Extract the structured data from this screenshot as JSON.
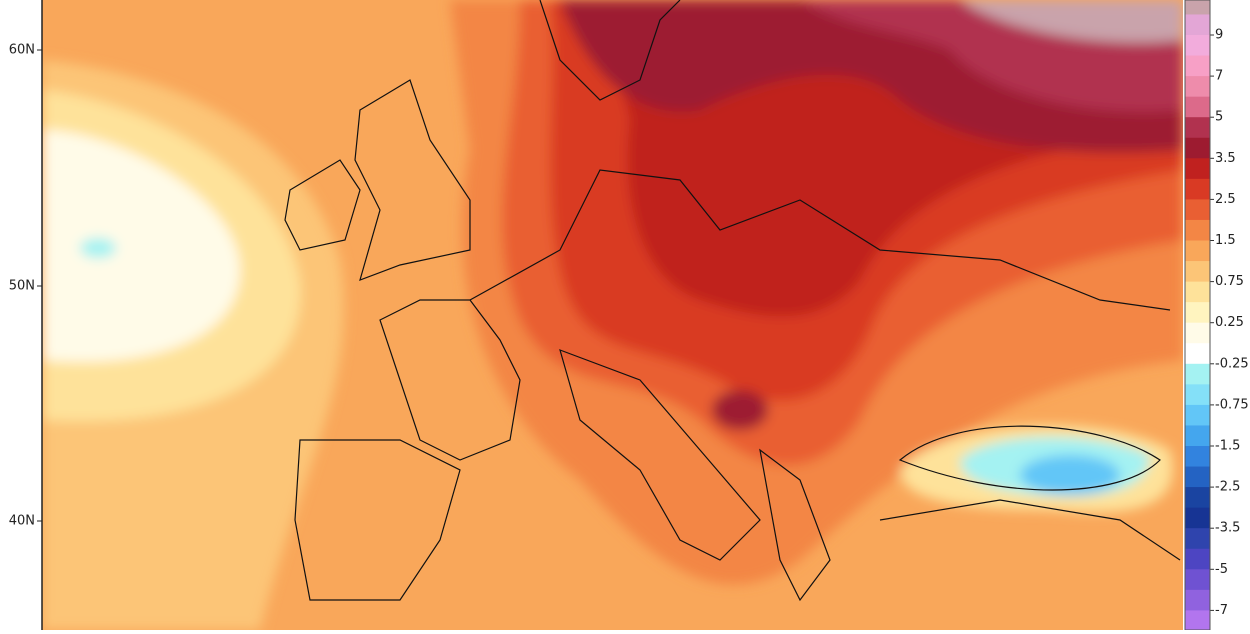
{
  "map": {
    "lat_labels": [
      "60N",
      "50N",
      "40N"
    ],
    "colorbar": {
      "labels": [
        "9",
        "7",
        "5",
        "3.5",
        "2.5",
        "1.5",
        "0.75",
        "0.25",
        "-0.25",
        "-0.75",
        "-1.5",
        "-2.5",
        "-3.5",
        "-5",
        "-7"
      ],
      "colors": [
        "#c9a3ab",
        "#e3a6d6",
        "#f2acdc",
        "#f7a0c6",
        "#ee8cab",
        "#dc6a8a",
        "#b1324f",
        "#9d1b30",
        "#c0211f",
        "#d93a24",
        "#e95f33",
        "#f38645",
        "#f9a75a",
        "#fcc577",
        "#fee29a",
        "#fff4bf",
        "#fffbe8",
        "#ffffff",
        "#a4f2f2",
        "#84e0f8",
        "#62c6f7",
        "#44a6ee",
        "#3283df",
        "#2463c3",
        "#1a44a1",
        "#173494",
        "#2f44ad",
        "#4d45c2",
        "#6f52d2",
        "#9062df",
        "#b275ee"
      ]
    }
  }
}
